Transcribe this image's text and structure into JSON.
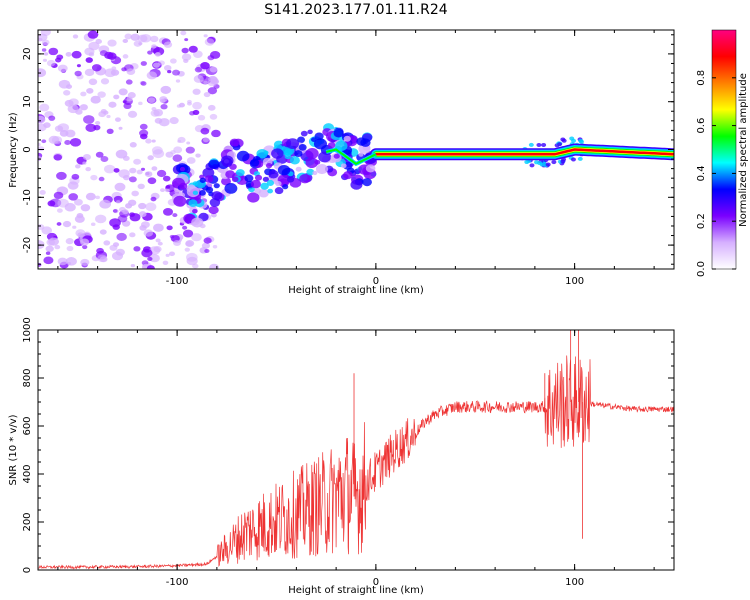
{
  "title": "S141.2023.177.01.11.R24",
  "chart_data": [
    {
      "type": "heatmap",
      "name": "spectrogram",
      "xlabel": "Height of straight line (km)",
      "ylabel": "Frequency (Hz)",
      "xlim": [
        -170,
        150
      ],
      "ylim": [
        -25,
        25
      ],
      "xticks": [
        -100,
        0,
        100
      ],
      "yticks": [
        -20,
        -10,
        0,
        10,
        20
      ],
      "colorbar": {
        "label": "Normalized spectral amplitude",
        "range": [
          0,
          1
        ],
        "ticks": [
          0.0,
          0.2,
          0.4,
          0.6,
          0.8
        ],
        "colors": [
          "#ffffff",
          "#d6b0ff",
          "#7a00ff",
          "#0000ff",
          "#00ffff",
          "#00ff00",
          "#ffff00",
          "#ff8000",
          "#ff0000",
          "#ff0080"
        ]
      },
      "ridge": [
        {
          "x": -170,
          "y": -8
        },
        {
          "x": -120,
          "y": -5
        },
        {
          "x": -100,
          "y": -6
        },
        {
          "x": -90,
          "y": -12
        },
        {
          "x": -85,
          "y": -9
        },
        {
          "x": -70,
          "y": -3
        },
        {
          "x": -60,
          "y": -6
        },
        {
          "x": -50,
          "y": -4
        },
        {
          "x": -40,
          "y": -2
        },
        {
          "x": -30,
          "y": -1
        },
        {
          "x": -20,
          "y": 0
        },
        {
          "x": -10,
          "y": -3
        },
        {
          "x": 0,
          "y": -1
        },
        {
          "x": 75,
          "y": -1
        },
        {
          "x": 90,
          "y": -1
        },
        {
          "x": 100,
          "y": 0
        },
        {
          "x": 150,
          "y": -1
        }
      ]
    },
    {
      "type": "line",
      "name": "snr",
      "xlabel": "Height of straight line (km)",
      "ylabel": "SNR (10 * v/v)",
      "xlim": [
        -170,
        150
      ],
      "ylim": [
        0,
        1000
      ],
      "xticks": [
        -100,
        0,
        100
      ],
      "yticks": [
        0,
        200,
        400,
        600,
        800,
        1000
      ],
      "color": "#ee3333",
      "x": [
        -170,
        -150,
        -120,
        -100,
        -85,
        -75,
        -65,
        -55,
        -45,
        -35,
        -25,
        -15,
        -10,
        -5,
        0,
        10,
        20,
        25,
        30,
        40,
        60,
        80,
        85,
        90,
        95,
        100,
        105,
        110,
        130,
        150
      ],
      "y": [
        12,
        12,
        14,
        18,
        25,
        90,
        160,
        190,
        220,
        250,
        280,
        330,
        300,
        360,
        410,
        500,
        570,
        620,
        650,
        680,
        680,
        680,
        680,
        690,
        700,
        700,
        700,
        690,
        670,
        670
      ],
      "spikes": [
        {
          "x": -11,
          "y": 820
        },
        {
          "x": 85,
          "y": 820
        },
        {
          "x": 98,
          "y": 1000
        },
        {
          "x": 102,
          "y": 1000
        },
        {
          "x": 104,
          "y": 130
        }
      ]
    }
  ]
}
